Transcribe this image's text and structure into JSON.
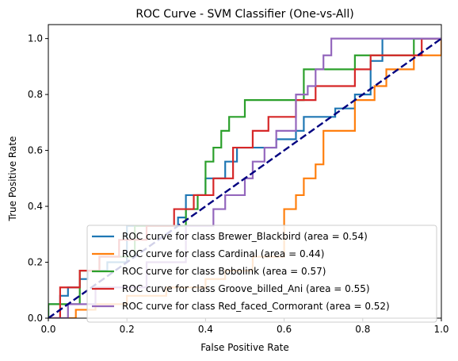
{
  "chart_data": {
    "type": "line",
    "title": "ROC Curve - SVM Classifier (One-vs-All)",
    "xlabel": "False Positive Rate",
    "ylabel": "True Positive Rate",
    "xlim": [
      0,
      1
    ],
    "ylim": [
      0,
      1.05
    ],
    "xticks": [
      0.0,
      0.2,
      0.4,
      0.6,
      0.8,
      1.0
    ],
    "yticks": [
      0.0,
      0.2,
      0.4,
      0.6,
      0.8,
      1.0
    ],
    "xtick_labels": [
      "0.0",
      "0.2",
      "0.4",
      "0.6",
      "0.8",
      "1.0"
    ],
    "ytick_labels": [
      "0.0",
      "0.2",
      "0.4",
      "0.6",
      "0.8",
      "1.0"
    ],
    "grid": false,
    "legend_position": "lower-right",
    "series": [
      {
        "name": "ROC curve for class Brewer_Blackbird (area = 0.54)",
        "color": "#1f77b4",
        "x": [
          0,
          0,
          0.03,
          0.03,
          0.05,
          0.05,
          0.08,
          0.08,
          0.1,
          0.1,
          0.15,
          0.15,
          0.2,
          0.2,
          0.33,
          0.33,
          0.35,
          0.35,
          0.4,
          0.4,
          0.45,
          0.45,
          0.48,
          0.48,
          0.58,
          0.58,
          0.63,
          0.63,
          0.65,
          0.65,
          0.73,
          0.73,
          0.78,
          0.78,
          0.82,
          0.82,
          0.85,
          0.85,
          1.0
        ],
        "y": [
          0,
          0.05,
          0.05,
          0.08,
          0.08,
          0.11,
          0.11,
          0.14,
          0.14,
          0.17,
          0.17,
          0.2,
          0.2,
          0.33,
          0.33,
          0.36,
          0.36,
          0.44,
          0.44,
          0.5,
          0.5,
          0.56,
          0.56,
          0.61,
          0.61,
          0.64,
          0.64,
          0.67,
          0.67,
          0.72,
          0.72,
          0.75,
          0.75,
          0.8,
          0.8,
          0.92,
          0.92,
          1.0,
          1.0
        ]
      },
      {
        "name": "ROC curve for class Cardinal (area = 0.44)",
        "color": "#ff7f0e",
        "x": [
          0,
          0.07,
          0.07,
          0.12,
          0.12,
          0.2,
          0.2,
          0.3,
          0.3,
          0.4,
          0.4,
          0.45,
          0.45,
          0.52,
          0.52,
          0.6,
          0.6,
          0.63,
          0.63,
          0.65,
          0.65,
          0.68,
          0.68,
          0.7,
          0.7,
          0.78,
          0.78,
          0.83,
          0.83,
          0.86,
          0.86,
          0.93,
          0.93,
          0.96,
          0.96,
          1.0,
          1.0
        ],
        "y": [
          0,
          0,
          0.03,
          0.03,
          0.05,
          0.05,
          0.08,
          0.08,
          0.11,
          0.11,
          0.14,
          0.14,
          0.17,
          0.17,
          0.22,
          0.22,
          0.39,
          0.39,
          0.44,
          0.44,
          0.5,
          0.5,
          0.55,
          0.55,
          0.67,
          0.67,
          0.78,
          0.78,
          0.83,
          0.83,
          0.89,
          0.89,
          0.94,
          0.94,
          0.94,
          0.94,
          1.0
        ]
      },
      {
        "name": "ROC curve for class Bobolink (area = 0.57)",
        "color": "#2ca02c",
        "x": [
          0,
          0,
          0.08,
          0.08,
          0.13,
          0.13,
          0.22,
          0.22,
          0.35,
          0.35,
          0.38,
          0.38,
          0.4,
          0.4,
          0.42,
          0.42,
          0.44,
          0.44,
          0.46,
          0.46,
          0.5,
          0.5,
          0.55,
          0.55,
          0.65,
          0.65,
          0.78,
          0.78,
          0.93,
          0.93,
          1.0
        ],
        "y": [
          0,
          0.05,
          0.05,
          0.17,
          0.17,
          0.22,
          0.22,
          0.33,
          0.33,
          0.39,
          0.39,
          0.44,
          0.44,
          0.56,
          0.56,
          0.61,
          0.61,
          0.67,
          0.67,
          0.72,
          0.72,
          0.78,
          0.78,
          0.78,
          0.78,
          0.89,
          0.89,
          0.94,
          0.94,
          1.0,
          1.0
        ]
      },
      {
        "name": "ROC curve for class Groove_billed_Ani (area = 0.55)",
        "color": "#d62728",
        "x": [
          0,
          0.03,
          0.03,
          0.08,
          0.08,
          0.13,
          0.13,
          0.18,
          0.18,
          0.25,
          0.25,
          0.32,
          0.32,
          0.37,
          0.37,
          0.42,
          0.42,
          0.47,
          0.47,
          0.52,
          0.52,
          0.56,
          0.56,
          0.63,
          0.63,
          0.68,
          0.68,
          0.78,
          0.78,
          0.82,
          0.82,
          0.95,
          0.95,
          1.0
        ],
        "y": [
          0,
          0,
          0.11,
          0.11,
          0.17,
          0.17,
          0.22,
          0.22,
          0.28,
          0.28,
          0.33,
          0.33,
          0.39,
          0.39,
          0.44,
          0.44,
          0.5,
          0.5,
          0.61,
          0.61,
          0.67,
          0.67,
          0.72,
          0.72,
          0.78,
          0.78,
          0.83,
          0.83,
          0.89,
          0.89,
          0.94,
          0.94,
          1.0,
          1.0
        ]
      },
      {
        "name": "ROC curve for class Red_faced_Cormorant (area = 0.52)",
        "color": "#9467bd",
        "x": [
          0,
          0.05,
          0.05,
          0.12,
          0.12,
          0.25,
          0.25,
          0.35,
          0.35,
          0.42,
          0.42,
          0.45,
          0.45,
          0.5,
          0.5,
          0.52,
          0.52,
          0.55,
          0.55,
          0.58,
          0.58,
          0.63,
          0.63,
          0.66,
          0.66,
          0.68,
          0.68,
          0.7,
          0.7,
          0.72,
          0.72,
          0.75,
          0.75,
          0.77,
          0.77,
          0.8,
          0.8,
          1.0
        ],
        "y": [
          0,
          0,
          0.05,
          0.05,
          0.11,
          0.11,
          0.2,
          0.2,
          0.33,
          0.33,
          0.39,
          0.39,
          0.44,
          0.44,
          0.5,
          0.5,
          0.56,
          0.56,
          0.61,
          0.61,
          0.67,
          0.67,
          0.8,
          0.8,
          0.83,
          0.83,
          0.89,
          0.89,
          0.94,
          0.94,
          1.0,
          1.0,
          1.0,
          1.0,
          1.0,
          1.0,
          1.0,
          1.0
        ]
      }
    ],
    "reference_line": {
      "x": [
        0,
        1
      ],
      "y": [
        0,
        1
      ],
      "color": "#000080",
      "style": "dashed"
    }
  }
}
